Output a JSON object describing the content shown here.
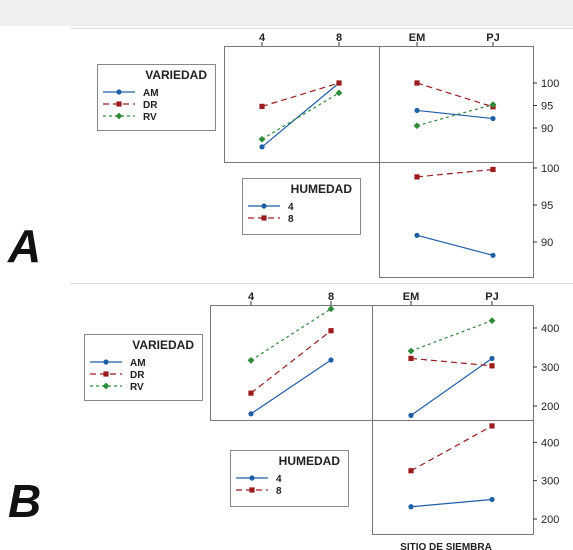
{
  "figure": {
    "labels": [
      "A",
      "B"
    ],
    "bottom_axis_title": "SITIO DE SIEMBRA"
  },
  "legends": {
    "variedad_title": "VARIEDAD",
    "humedad_title": "HUMEDAD",
    "variedad_items": [
      "AM",
      "DR",
      "RV"
    ],
    "humedad_items": [
      "4",
      "8"
    ]
  },
  "colors": {
    "AM": "#1f5fa8",
    "DR": "#9b1c1c",
    "RV": "#2e8b3a",
    "H4": "#1f5fa8",
    "H8": "#9b1c1c",
    "panel_border": "#777777",
    "background": "#ffffff"
  },
  "chart_data": [
    {
      "type": "line",
      "panel": "A - HUMEDAD x VARIEDAD",
      "x": [
        "4",
        "8"
      ],
      "ylim": [
        85,
        102
      ],
      "yticks": [
        90,
        95,
        100
      ],
      "series": [
        {
          "name": "AM",
          "values": [
            85.8,
            100
          ]
        },
        {
          "name": "DR",
          "values": [
            94.8,
            100
          ]
        },
        {
          "name": "RV",
          "values": [
            87.5,
            97.8
          ]
        }
      ]
    },
    {
      "type": "line",
      "panel": "A - SITIO DE SIEMBRA x VARIEDAD",
      "x": [
        "EM",
        "PJ"
      ],
      "ylim": [
        85,
        102
      ],
      "yticks": [
        90,
        95,
        100
      ],
      "series": [
        {
          "name": "AM",
          "values": [
            93.9,
            92.1
          ]
        },
        {
          "name": "DR",
          "values": [
            100,
            94.7
          ]
        },
        {
          "name": "RV",
          "values": [
            90.5,
            95.2
          ]
        }
      ]
    },
    {
      "type": "line",
      "panel": "A - SITIO DE SIEMBRA x HUMEDAD",
      "x": [
        "EM",
        "PJ"
      ],
      "ylim": [
        85,
        102
      ],
      "yticks": [
        90,
        95,
        100
      ],
      "series": [
        {
          "name": "4",
          "values": [
            90.9,
            88.2
          ]
        },
        {
          "name": "8",
          "values": [
            98.8,
            99.8
          ]
        }
      ]
    },
    {
      "type": "line",
      "panel": "B - HUMEDAD x VARIEDAD",
      "x": [
        "4",
        "8"
      ],
      "ylim": [
        170,
        470
      ],
      "yticks": [
        200,
        300,
        400
      ],
      "series": [
        {
          "name": "AM",
          "values": [
            180,
            318
          ]
        },
        {
          "name": "DR",
          "values": [
            233,
            393
          ]
        },
        {
          "name": "RV",
          "values": [
            317,
            449
          ]
        }
      ]
    },
    {
      "type": "line",
      "panel": "B - SITIO DE SIEMBRA x VARIEDAD",
      "x": [
        "EM",
        "PJ"
      ],
      "ylim": [
        170,
        470
      ],
      "yticks": [
        200,
        300,
        400
      ],
      "series": [
        {
          "name": "AM",
          "values": [
            176,
            322
          ]
        },
        {
          "name": "DR",
          "values": [
            322,
            303
          ]
        },
        {
          "name": "RV",
          "values": [
            341,
            419
          ]
        }
      ]
    },
    {
      "type": "line",
      "panel": "B - SITIO DE SIEMBRA x HUMEDAD",
      "x": [
        "EM",
        "PJ"
      ],
      "ylim": [
        170,
        470
      ],
      "yticks": [
        200,
        300,
        400
      ],
      "series": [
        {
          "name": "4",
          "values": [
            232,
            251
          ]
        },
        {
          "name": "8",
          "values": [
            326,
            443
          ]
        }
      ]
    }
  ]
}
